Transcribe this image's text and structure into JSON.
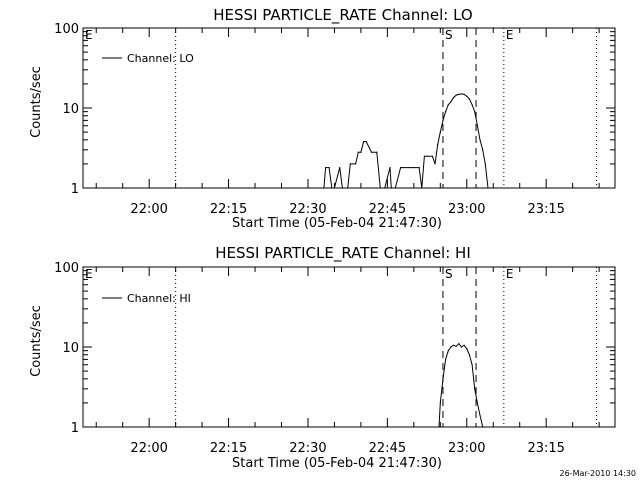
{
  "footer_timestamp": "26-Mar-2010 14:30",
  "chart_data": [
    {
      "type": "line",
      "title": "HESSI PARTICLE_RATE Channel: LO",
      "xlabel": "Start Time (05-Feb-04 21:47:30)",
      "ylabel": "Counts/sec",
      "y_scale": "log",
      "ylim": [
        1,
        100
      ],
      "y_ticks": [
        {
          "value": 1,
          "label": "1"
        },
        {
          "value": 10,
          "label": "10"
        },
        {
          "value": 100,
          "label": "100"
        }
      ],
      "xlim": [
        "21:47:30",
        "23:28:00"
      ],
      "x_ticks": [
        "22:00",
        "22:15",
        "22:30",
        "22:45",
        "23:00",
        "23:15"
      ],
      "legend": {
        "label": "Channel: LO",
        "position": "top-left"
      },
      "markers": [
        {
          "label": "E",
          "time": "21:47:30",
          "style": "dotted"
        },
        {
          "label": "",
          "time": "22:05:00",
          "style": "dotted"
        },
        {
          "label": "S",
          "time": "22:55:30",
          "style": "dashed"
        },
        {
          "label": "",
          "time": "23:01:45",
          "style": "dashed"
        },
        {
          "label": "E",
          "time": "23:07:00",
          "style": "dotted"
        },
        {
          "label": "",
          "time": "23:24:30",
          "style": "dotted"
        }
      ],
      "series": [
        {
          "x": [
            "22:33:00",
            "22:33:20",
            "22:34:00",
            "22:34:30",
            "22:35:00",
            "22:36:00",
            "22:36:30",
            "22:37:30",
            "22:38:00",
            "22:39:00",
            "22:39:30",
            "22:40:00",
            "22:40:30",
            "22:41:00",
            "22:42:00",
            "22:43:00",
            "22:43:40",
            "22:44:30",
            "22:45:30",
            "22:45:45",
            "22:46:30",
            "22:47:30",
            "22:48:00",
            "22:49:00",
            "22:50:00",
            "22:51:00",
            "22:51:30",
            "22:52:00",
            "22:52:30",
            "22:53:30",
            "22:54:00",
            "22:54:30",
            "22:55:00",
            "22:55:30",
            "22:56:00",
            "22:56:30",
            "22:57:00",
            "22:57:30",
            "22:58:00",
            "22:58:30",
            "22:59:00",
            "22:59:30",
            "23:00:00",
            "23:00:30",
            "23:01:00",
            "23:01:30",
            "23:02:00",
            "23:02:30",
            "23:03:00",
            "23:03:30",
            "23:04:00",
            "23:04:30"
          ],
          "y": [
            1,
            1.8,
            1.8,
            1,
            1,
            1.8,
            1,
            1,
            2,
            2,
            2.8,
            2.8,
            3.8,
            3.8,
            2.8,
            2.8,
            1,
            1,
            1.8,
            1,
            1,
            1.8,
            1.8,
            1.8,
            1.8,
            1.8,
            1,
            2.5,
            2.5,
            2.5,
            2,
            3.5,
            5,
            7,
            9,
            11,
            12,
            13.5,
            14.5,
            14.8,
            15,
            14.8,
            14,
            13,
            11,
            9,
            6,
            4,
            3,
            2,
            1,
            1
          ]
        }
      ]
    },
    {
      "type": "line",
      "title": "HESSI PARTICLE_RATE Channel: HI",
      "xlabel": "Start Time (05-Feb-04 21:47:30)",
      "ylabel": "Counts/sec",
      "y_scale": "log",
      "ylim": [
        1,
        100
      ],
      "y_ticks": [
        {
          "value": 1,
          "label": "1"
        },
        {
          "value": 10,
          "label": "10"
        },
        {
          "value": 100,
          "label": "100"
        }
      ],
      "xlim": [
        "21:47:30",
        "23:28:00"
      ],
      "x_ticks": [
        "22:00",
        "22:15",
        "22:30",
        "22:45",
        "23:00",
        "23:15"
      ],
      "legend": {
        "label": "Channel: HI",
        "position": "top-left"
      },
      "markers": [
        {
          "label": "E",
          "time": "21:47:30",
          "style": "dotted"
        },
        {
          "label": "",
          "time": "22:05:00",
          "style": "dotted"
        },
        {
          "label": "S",
          "time": "22:55:30",
          "style": "dashed"
        },
        {
          "label": "",
          "time": "23:01:45",
          "style": "dashed"
        },
        {
          "label": "E",
          "time": "23:07:00",
          "style": "dotted"
        },
        {
          "label": "",
          "time": "23:24:30",
          "style": "dotted"
        }
      ],
      "series": [
        {
          "x": [
            "22:54:45",
            "22:55:00",
            "22:55:30",
            "22:56:00",
            "22:56:30",
            "22:57:00",
            "22:57:30",
            "22:58:00",
            "22:58:30",
            "22:59:00",
            "22:59:30",
            "23:00:00",
            "23:00:30",
            "23:01:00",
            "23:01:30",
            "23:02:00",
            "23:02:30",
            "23:03:00"
          ],
          "y": [
            1,
            2,
            4,
            7,
            9,
            10,
            10.5,
            10.2,
            11,
            10,
            10.5,
            9.5,
            8,
            6,
            3,
            2,
            1.4,
            1
          ]
        }
      ]
    }
  ]
}
